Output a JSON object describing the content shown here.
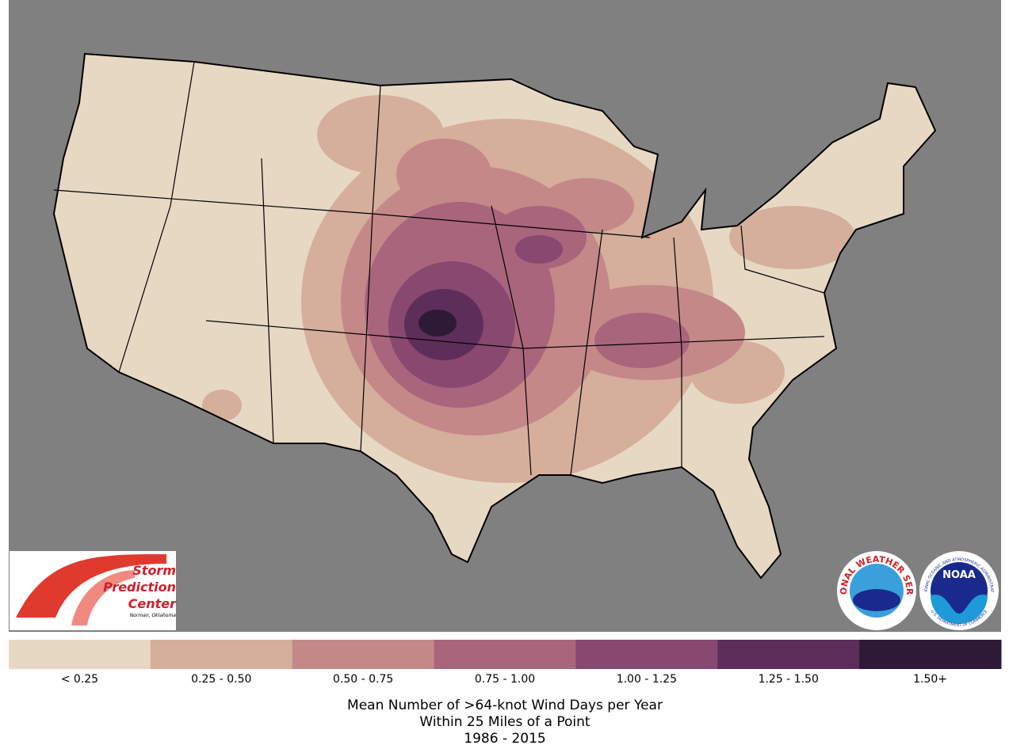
{
  "map": {
    "legend": [
      {
        "label": "< 0.25",
        "color": "#e7d8c4"
      },
      {
        "label": "0.25 - 0.50",
        "color": "#d6ae9c"
      },
      {
        "label": "0.50 - 0.75",
        "color": "#c48889"
      },
      {
        "label": "0.75 - 1.00",
        "color": "#a9657c"
      },
      {
        "label": "1.00 - 1.25",
        "color": "#884870"
      },
      {
        "label": "1.25 - 1.50",
        "color": "#5e2e5a"
      },
      {
        "label": "1.50+",
        "color": "#2e1a37"
      }
    ],
    "title": [
      "Mean Number of >64-knot Wind Days per Year",
      "Within 25 Miles of a Point",
      "1986 - 2015"
    ]
  },
  "logos": {
    "spc": {
      "name": [
        "Storm",
        "Prediction",
        "Center"
      ],
      "location": "Norman, Oklahoma"
    },
    "nws": "NATIONAL WEATHER SERVICE",
    "noaa": {
      "name": "NOAA",
      "ring_top": "NATIONAL OCEANIC AND ATMOSPHERIC ADMINISTRATION",
      "ring_bottom": "U.S. DEPARTMENT OF COMMERCE"
    }
  }
}
